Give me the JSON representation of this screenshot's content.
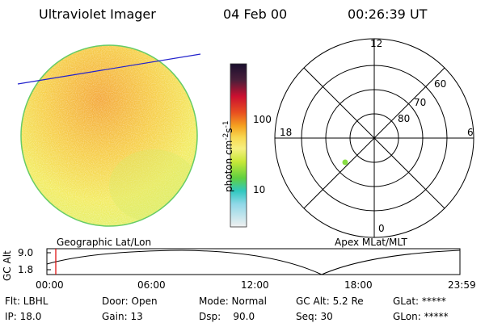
{
  "header": {
    "title": "Ultraviolet Imager",
    "date": "04 Feb 00",
    "time": "00:26:39 UT"
  },
  "colorbar": {
    "unit": "photon cm",
    "unit_exp1": "-2",
    "unit_mid": "s",
    "unit_exp2": "-1",
    "ticks": [
      "100",
      "10"
    ]
  },
  "polar": {
    "mlt_labels": {
      "top": "12",
      "left": "18",
      "right": "6",
      "bottom": "0"
    },
    "lat_labels": [
      "60",
      "70",
      "80"
    ]
  },
  "timeline": {
    "left_label": "Geographic Lat/Lon",
    "right_label": "Apex MLat/MLT",
    "yaxis_title": "GC Alt",
    "y_ticks": [
      "9.0",
      "1.8"
    ],
    "x_ticks": [
      "00:00",
      "06:00",
      "12:00",
      "18:00",
      "23:59"
    ]
  },
  "info": {
    "flt": "Flt: LBHL",
    "ip": "IP: 18.0",
    "door": "Door: Open",
    "gain": "Gain: 13",
    "mode": "Mode: Normal",
    "dsp": "Dsp:    90.0",
    "gcalt": "GC Alt: 5.2 Re",
    "seq": "Seq: 30",
    "glat": "GLat: *****",
    "glon": "GLon: *****"
  },
  "colors": {
    "disk_fill": "#f5e35a",
    "disk_edge": "#66cc66",
    "scan_line": "#2222cc",
    "time_marker": "#dd0000",
    "polar_dot": "#88dd44"
  }
}
